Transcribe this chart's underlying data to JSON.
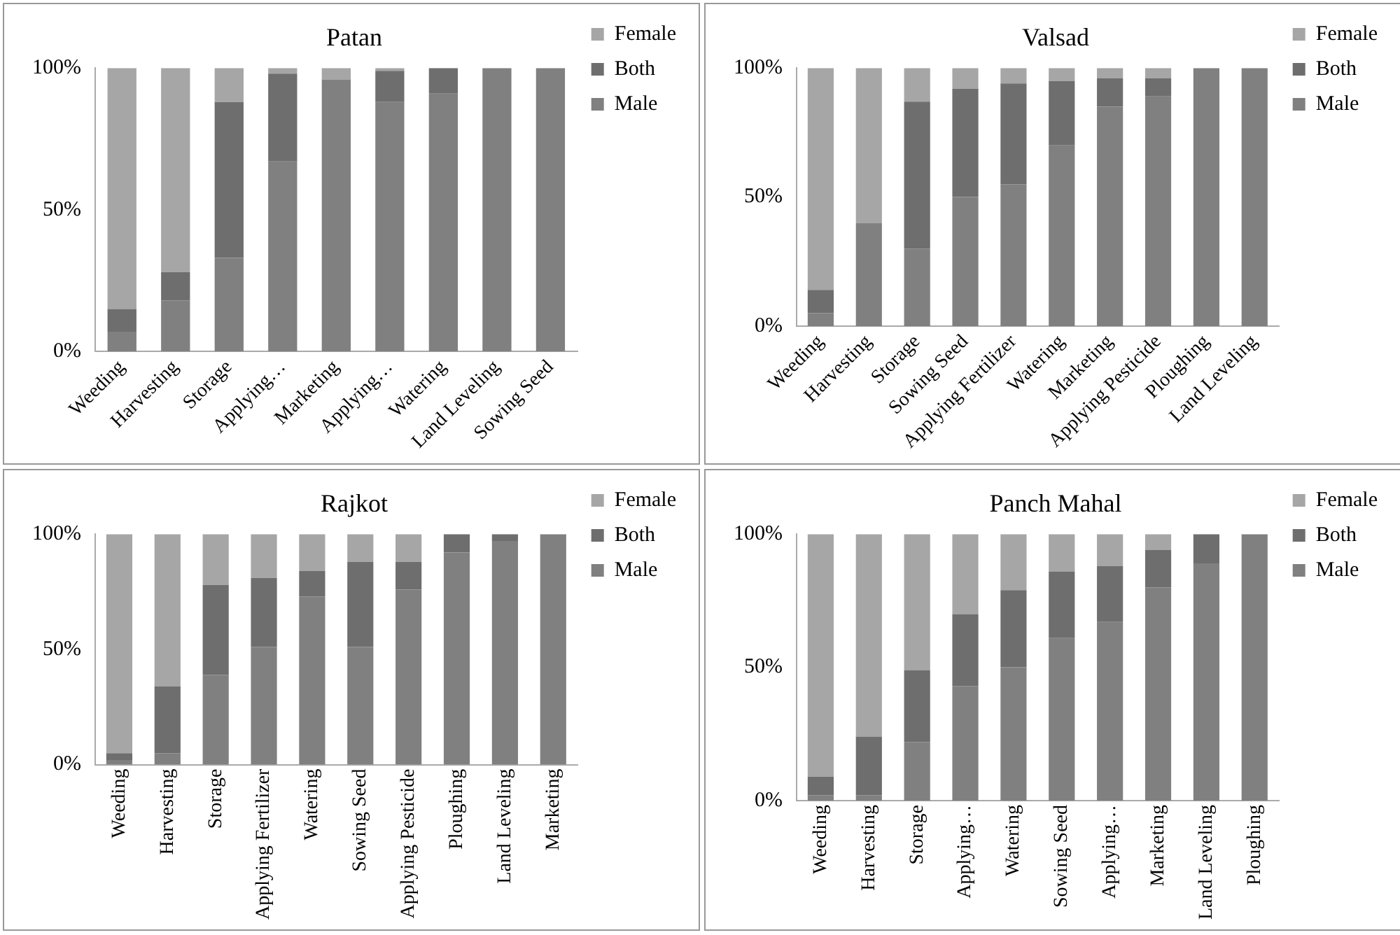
{
  "chart_data": [
    {
      "type": "bar",
      "title": "Patan",
      "stacked": true,
      "legend": "right",
      "grid": false,
      "categories": [
        "Weeding",
        "Harvesting",
        "Storage",
        "Applying…",
        "Marketing",
        "Applying…",
        "Watering",
        "Land Leveling",
        "Sowing Seed"
      ],
      "ylim": [
        0,
        100
      ],
      "yticks": [
        {
          "value": 0,
          "label": "0%"
        },
        {
          "value": 50,
          "label": "50%"
        },
        {
          "value": 100,
          "label": "100%"
        }
      ],
      "series": [
        {
          "name": "Male",
          "color": "#808080",
          "values": [
            7,
            18,
            33,
            67,
            96,
            88,
            91,
            100,
            100
          ]
        },
        {
          "name": "Both",
          "color": "#6e6e6e",
          "values": [
            8,
            10,
            55,
            31,
            0,
            11,
            9,
            0,
            0
          ]
        },
        {
          "name": "Female",
          "color": "#a6a6a6",
          "values": [
            85,
            72,
            12,
            2,
            4,
            1,
            0,
            0,
            0
          ]
        }
      ]
    },
    {
      "type": "bar",
      "title": "Valsad",
      "stacked": true,
      "legend": "right",
      "grid": false,
      "categories": [
        "Weeding",
        "Harvesting",
        "Storage",
        "Sowing Seed",
        "Applying Fertilizer",
        "Watering",
        "Marketing",
        "Applying Pesticide",
        "Ploughing",
        "Land Leveling"
      ],
      "ylim": [
        0,
        100
      ],
      "yticks": [
        {
          "value": 0,
          "label": "0%"
        },
        {
          "value": 50,
          "label": "50%"
        },
        {
          "value": 100,
          "label": "100%"
        }
      ],
      "series": [
        {
          "name": "Male",
          "color": "#808080",
          "values": [
            5,
            40,
            30,
            50,
            55,
            70,
            85,
            89,
            100,
            100
          ]
        },
        {
          "name": "Both",
          "color": "#6e6e6e",
          "values": [
            9,
            0,
            57,
            42,
            39,
            25,
            11,
            7,
            0,
            0
          ]
        },
        {
          "name": "Female",
          "color": "#a6a6a6",
          "values": [
            86,
            60,
            13,
            8,
            6,
            5,
            4,
            4,
            0,
            0
          ]
        }
      ]
    },
    {
      "type": "bar",
      "title": "Rajkot",
      "stacked": true,
      "legend": "right",
      "grid": false,
      "categories": [
        "Weeding",
        "Harvesting",
        "Storage",
        "Applying Fertilizer",
        "Watering",
        "Sowing Seed",
        "Applying Pesticide",
        "Ploughing",
        "Land Leveling",
        "Marketing"
      ],
      "ylim": [
        0,
        100
      ],
      "yticks": [
        {
          "value": 0,
          "label": "0%"
        },
        {
          "value": 50,
          "label": "50%"
        },
        {
          "value": 100,
          "label": "100%"
        }
      ],
      "series": [
        {
          "name": "Male",
          "color": "#808080",
          "values": [
            2,
            5,
            39,
            51,
            73,
            51,
            76,
            92,
            97,
            100
          ]
        },
        {
          "name": "Both",
          "color": "#6e6e6e",
          "values": [
            3,
            29,
            39,
            30,
            11,
            37,
            12,
            8,
            3,
            0
          ]
        },
        {
          "name": "Female",
          "color": "#a6a6a6",
          "values": [
            95,
            66,
            22,
            19,
            16,
            12,
            12,
            0,
            0,
            0
          ]
        }
      ]
    },
    {
      "type": "bar",
      "title": "Panch Mahal",
      "stacked": true,
      "legend": "right",
      "grid": false,
      "categories": [
        "Weeding",
        "Harvesting",
        "Storage",
        "Applying…",
        "Watering",
        "Sowing Seed",
        "Applying…",
        "Marketing",
        "Land Leveling",
        "Ploughing"
      ],
      "ylim": [
        0,
        100
      ],
      "yticks": [
        {
          "value": 0,
          "label": "0%"
        },
        {
          "value": 50,
          "label": "50%"
        },
        {
          "value": 100,
          "label": "100%"
        }
      ],
      "series": [
        {
          "name": "Male",
          "color": "#808080",
          "values": [
            2,
            2,
            22,
            43,
            50,
            61,
            67,
            80,
            89,
            100
          ]
        },
        {
          "name": "Both",
          "color": "#6e6e6e",
          "values": [
            7,
            22,
            27,
            27,
            29,
            25,
            21,
            14,
            11,
            0
          ]
        },
        {
          "name": "Female",
          "color": "#a6a6a6",
          "values": [
            91,
            76,
            51,
            30,
            21,
            14,
            12,
            6,
            0,
            0
          ]
        }
      ]
    }
  ]
}
